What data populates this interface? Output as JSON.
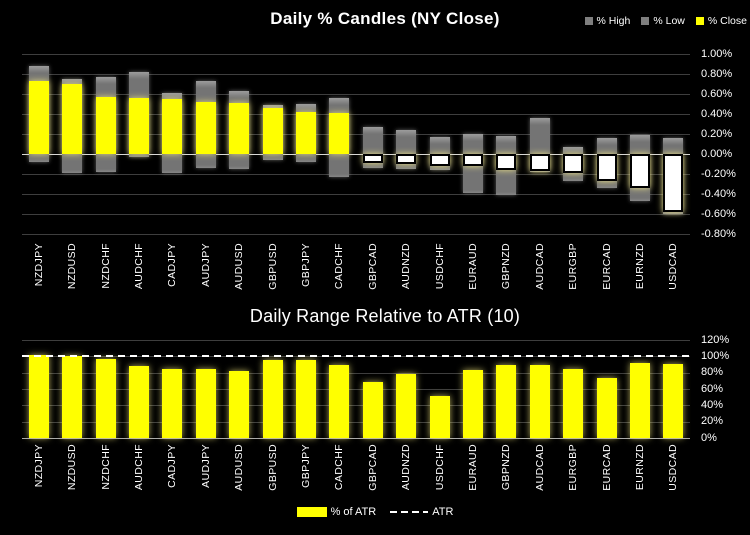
{
  "colors": {
    "background": "#000000",
    "close_up": "#ffff00",
    "close_down": "#ffffff",
    "high_low_bar": "#7f7f7f",
    "gridline": "#3e3e3e",
    "zero_line": "#d9d9d9",
    "text": "#ffffff",
    "atr_line": "#ffffff"
  },
  "chart_data": [
    {
      "type": "bar",
      "subtype": "daily-percent-candles",
      "title": "Daily % Candles (NY Close)",
      "legend": [
        "% High",
        "% Low",
        "% Close"
      ],
      "legend_position": "top-right",
      "grid": true,
      "zero_line": true,
      "ylim": [
        -0.8,
        1.0
      ],
      "ytick_labels": [
        "1.00%",
        "0.80%",
        "0.60%",
        "0.40%",
        "0.20%",
        "0.00%",
        "-0.20%",
        "-0.40%",
        "-0.60%",
        "-0.80%"
      ],
      "ytick_values": [
        1.0,
        0.8,
        0.6,
        0.4,
        0.2,
        0.0,
        -0.2,
        -0.4,
        -0.6,
        -0.8
      ],
      "categories": [
        "NZDJPY",
        "NZDUSD",
        "NZDCHF",
        "AUDCHF",
        "CADJPY",
        "AUDJPY",
        "AUDUSD",
        "GBPUSD",
        "GBPJPY",
        "CADCHF",
        "GBPCAD",
        "AUDNZD",
        "USDCHF",
        "EURAUD",
        "GBPNZD",
        "AUDCAD",
        "EURGBP",
        "EURCAD",
        "EURNZD",
        "USDCAD"
      ],
      "series": [
        {
          "name": "% High",
          "values": [
            0.88,
            0.75,
            0.77,
            0.82,
            0.61,
            0.73,
            0.63,
            0.49,
            0.5,
            0.56,
            0.27,
            0.24,
            0.17,
            0.2,
            0.18,
            0.36,
            0.07,
            0.16,
            0.19,
            0.16
          ]
        },
        {
          "name": "% Low",
          "values": [
            -0.08,
            -0.19,
            -0.18,
            -0.03,
            -0.19,
            -0.14,
            -0.15,
            -0.06,
            -0.08,
            -0.23,
            -0.14,
            -0.15,
            -0.16,
            -0.39,
            -0.41,
            -0.18,
            -0.27,
            -0.34,
            -0.47,
            -0.6
          ]
        },
        {
          "name": "% Close",
          "values": [
            0.73,
            0.7,
            0.57,
            0.56,
            0.55,
            0.52,
            0.51,
            0.46,
            0.42,
            0.41,
            -0.09,
            -0.1,
            -0.12,
            -0.12,
            -0.16,
            -0.17,
            -0.19,
            -0.27,
            -0.34,
            -0.58
          ]
        }
      ]
    },
    {
      "type": "bar",
      "title": "Daily Range Relative to ATR (10)",
      "legend": [
        "% of ATR",
        "ATR"
      ],
      "legend_position": "bottom",
      "grid": true,
      "ylim": [
        0,
        120
      ],
      "ytick_labels": [
        "120%",
        "100%",
        "80%",
        "60%",
        "40%",
        "20%",
        "0%"
      ],
      "ytick_values": [
        120,
        100,
        80,
        60,
        40,
        20,
        0
      ],
      "reference_line": {
        "name": "ATR",
        "value": 100,
        "style": "dashed"
      },
      "categories": [
        "NZDJPY",
        "NZDUSD",
        "NZDCHF",
        "AUDCHF",
        "CADJPY",
        "AUDJPY",
        "AUDUSD",
        "GBPUSD",
        "GBPJPY",
        "CADCHF",
        "GBPCAD",
        "AUDNZD",
        "USDCHF",
        "EURAUD",
        "GBPNZD",
        "AUDCAD",
        "EURGBP",
        "EURCAD",
        "EURNZD",
        "USDCAD"
      ],
      "values": [
        102,
        101,
        97,
        88,
        84,
        84,
        82,
        95,
        96,
        89,
        69,
        78,
        51,
        83,
        90,
        89,
        85,
        73,
        92,
        91
      ]
    }
  ]
}
